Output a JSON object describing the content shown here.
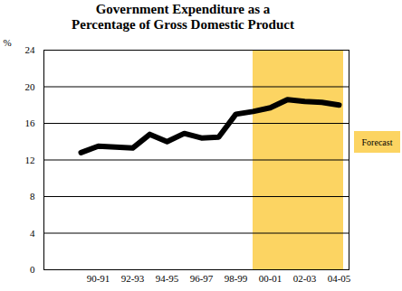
{
  "chart_data": {
    "type": "line",
    "title": "Government Expenditure as a\nPercentage of Gross Domestic Product",
    "y_label": "%",
    "categories": [
      null,
      "90-91",
      null,
      "92-93",
      null,
      "94-95",
      null,
      "96-97",
      null,
      "98-99",
      null,
      "00-01",
      null,
      "02-03",
      null,
      "04-05"
    ],
    "values": [
      12.8,
      13.5,
      13.4,
      13.3,
      14.8,
      14.0,
      14.9,
      14.4,
      14.5,
      17.0,
      17.3,
      17.7,
      18.6,
      18.4,
      18.3,
      18.0
    ],
    "color": "#000000",
    "ylim": [
      0,
      24
    ],
    "yticks": [
      0,
      4,
      8,
      12,
      16,
      20,
      24
    ],
    "grid": true,
    "legend": "right",
    "shaded_region": {
      "label": "Forecast",
      "color": "#fcd462",
      "start": 10,
      "end": 15
    }
  }
}
